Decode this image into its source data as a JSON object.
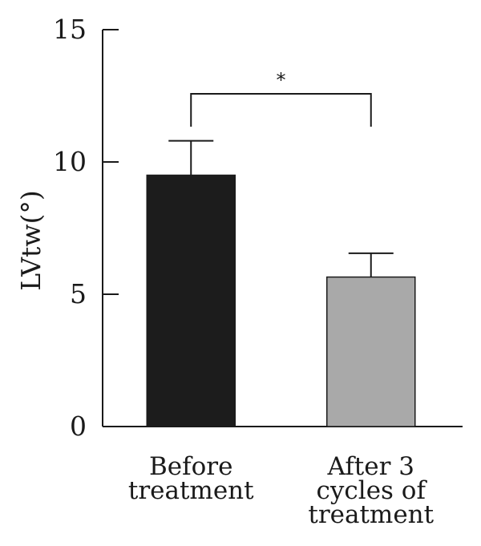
{
  "chart_data": {
    "type": "bar",
    "ylabel": "LVtw(°)",
    "ylim": [
      0,
      15
    ],
    "yticks": [
      0,
      5,
      10,
      15
    ],
    "categories": [
      [
        "Before",
        "treatment"
      ],
      [
        "After 3",
        "cycles of",
        "treatment"
      ]
    ],
    "values": [
      9.5,
      5.65
    ],
    "errors": [
      1.3,
      0.9
    ],
    "colors": [
      "#1c1c1c",
      "#a9a9a9"
    ],
    "significance": {
      "between": [
        0,
        1
      ],
      "symbol": "*"
    }
  }
}
